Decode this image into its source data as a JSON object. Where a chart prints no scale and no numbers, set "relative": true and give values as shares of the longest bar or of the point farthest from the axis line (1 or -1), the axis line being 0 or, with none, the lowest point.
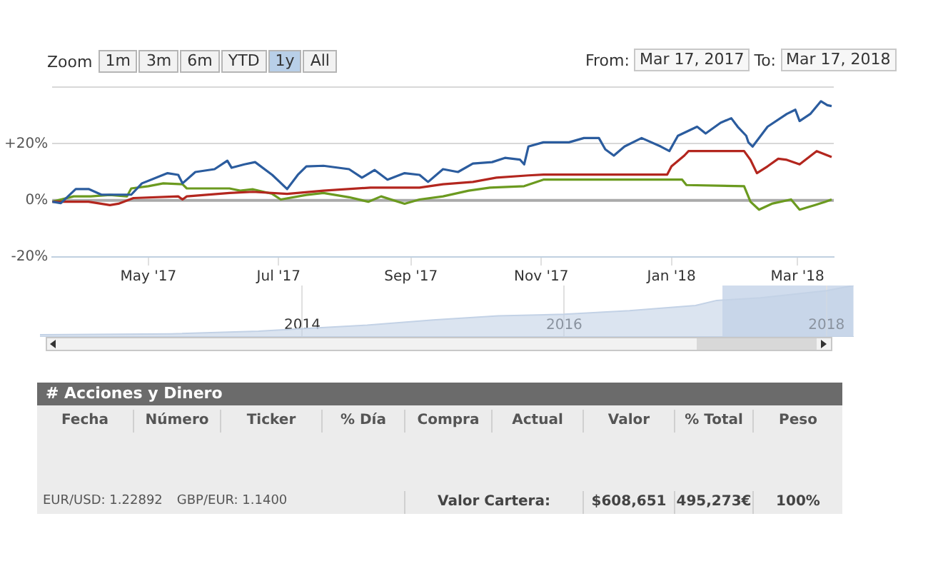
{
  "chart_data": [
    {
      "type": "line",
      "xlim": [
        "2017-03-17",
        "2018-03-18"
      ],
      "ylim": [
        -20,
        40
      ],
      "xticks": [
        {
          "value": "2017-05-01",
          "label": "May '17"
        },
        {
          "value": "2017-07-01",
          "label": "Jul '17"
        },
        {
          "value": "2017-09-01",
          "label": "Sep '17"
        },
        {
          "value": "2017-11-01",
          "label": "Nov '17"
        },
        {
          "value": "2018-01-01",
          "label": "Jan '18"
        },
        {
          "value": "2018-03-01",
          "label": "Mar '18"
        }
      ],
      "yticks": [
        {
          "value": -20,
          "label": "-20%"
        },
        {
          "value": 0,
          "label": "0%"
        },
        {
          "value": 20,
          "label": "+20%"
        },
        {
          "value": 40,
          "label": null
        }
      ],
      "grid": "y",
      "legend": false,
      "ref_lines": [
        {
          "axis": "y",
          "value": 0,
          "color": "#aaaaaa"
        }
      ],
      "annotations": [
        "Zoom",
        "1m",
        "3m",
        "6m",
        "YTD",
        "1y",
        "All",
        "From:",
        "Mar 17, 2017",
        "To:",
        "Mar 17, 2018"
      ],
      "series": [
        {
          "color": "#2b5c9e",
          "x": [
            "2017-03-17",
            "2017-03-21",
            "2017-03-28",
            "2017-04-03",
            "2017-04-09",
            "2017-04-23",
            "2017-04-28",
            "2017-05-10",
            "2017-05-15",
            "2017-05-17",
            "2017-05-23",
            "2017-06-01",
            "2017-06-07",
            "2017-06-09",
            "2017-06-15",
            "2017-06-20",
            "2017-06-28",
            "2017-07-05",
            "2017-07-10",
            "2017-07-14",
            "2017-07-22",
            "2017-08-03",
            "2017-08-09",
            "2017-08-15",
            "2017-08-21",
            "2017-08-29",
            "2017-09-05",
            "2017-09-09",
            "2017-09-16",
            "2017-09-23",
            "2017-09-30",
            "2017-10-09",
            "2017-10-15",
            "2017-10-22",
            "2017-10-24",
            "2017-10-26",
            "2017-11-02",
            "2017-11-14",
            "2017-11-21",
            "2017-11-28",
            "2017-12-01",
            "2017-12-05",
            "2017-12-10",
            "2017-12-18",
            "2017-12-27",
            "2017-12-31",
            "2018-01-04",
            "2018-01-13",
            "2018-01-17",
            "2018-01-24",
            "2018-01-29",
            "2018-02-01",
            "2018-02-05",
            "2018-02-06",
            "2018-02-08",
            "2018-02-15",
            "2018-02-24",
            "2018-02-28",
            "2018-03-02",
            "2018-03-07",
            "2018-03-12",
            "2018-03-15",
            "2018-03-17"
          ],
          "values": [
            -0.5,
            -1,
            4,
            4,
            2,
            2,
            6,
            9.6,
            9,
            6,
            10,
            11,
            14,
            11.5,
            12.7,
            13.5,
            9,
            4,
            9,
            12,
            12.2,
            11,
            8,
            10.7,
            7.3,
            9.6,
            9,
            6.5,
            11,
            10,
            13,
            13.5,
            15,
            14.4,
            12.7,
            19,
            20.5,
            20.5,
            22,
            22,
            18,
            15.8,
            19,
            22,
            19,
            17.4,
            22.8,
            26,
            23.6,
            27.4,
            29,
            26,
            22.8,
            20.5,
            19,
            26,
            30.5,
            32,
            28,
            30.5,
            35,
            33.6,
            33.3
          ]
        },
        {
          "color": "#b3261e",
          "x": [
            "2017-03-17",
            "2017-04-03",
            "2017-04-13",
            "2017-04-17",
            "2017-04-24",
            "2017-05-15",
            "2017-05-17",
            "2017-05-19",
            "2017-06-08",
            "2017-06-19",
            "2017-07-05",
            "2017-07-22",
            "2017-08-13",
            "2017-09-05",
            "2017-09-16",
            "2017-09-30",
            "2017-10-11",
            "2017-10-26",
            "2017-11-02",
            "2017-12-30",
            "2018-01-01",
            "2018-01-07",
            "2018-01-09",
            "2018-02-04",
            "2018-02-07",
            "2018-02-10",
            "2018-02-15",
            "2018-02-20",
            "2018-02-24",
            "2018-03-02",
            "2018-03-10",
            "2018-03-17"
          ],
          "values": [
            -0.5,
            -0.5,
            -1.7,
            -1.2,
            0.8,
            1.4,
            0.3,
            1.4,
            2.6,
            3,
            2.3,
            3.4,
            4.5,
            4.5,
            5.7,
            6.5,
            8,
            8.8,
            9.1,
            9.1,
            12,
            15.8,
            17.4,
            17.4,
            14.3,
            9.6,
            12,
            14.7,
            14.3,
            12.7,
            17.4,
            15.3
          ]
        },
        {
          "color": "#6b9a1f",
          "x": [
            "2017-03-17",
            "2017-03-27",
            "2017-04-04",
            "2017-04-13",
            "2017-04-21",
            "2017-04-23",
            "2017-05-01",
            "2017-05-08",
            "2017-05-17",
            "2017-05-19",
            "2017-06-08",
            "2017-06-13",
            "2017-06-19",
            "2017-06-28",
            "2017-07-02",
            "2017-07-14",
            "2017-07-22",
            "2017-08-03",
            "2017-08-12",
            "2017-08-18",
            "2017-08-29",
            "2017-09-05",
            "2017-09-16",
            "2017-09-28",
            "2017-10-08",
            "2017-10-24",
            "2017-11-02",
            "2018-01-06",
            "2018-01-08",
            "2018-02-04",
            "2018-02-07",
            "2018-02-11",
            "2018-02-17",
            "2018-02-26",
            "2018-03-02",
            "2018-03-09",
            "2018-03-14",
            "2018-03-17"
          ],
          "values": [
            -0.5,
            1.4,
            1.4,
            1.9,
            1.4,
            4.2,
            5,
            6,
            5.7,
            4.2,
            4.2,
            3.4,
            3.9,
            2.3,
            0.3,
            1.9,
            2.6,
            1.1,
            -0.5,
            1.4,
            -1.2,
            0.3,
            1.4,
            3.4,
            4.5,
            5,
            7.3,
            7.3,
            5.4,
            5,
            -0.5,
            -3.3,
            -1.2,
            0.3,
            -3.3,
            -1.7,
            -0.5,
            0.3
          ]
        }
      ]
    },
    {
      "type": "area",
      "relative": true,
      "xlim": [
        "2012-01-01",
        "2018-03-18"
      ],
      "xticks": [
        {
          "value": "2014",
          "label": "2014"
        },
        {
          "value": "2016",
          "label": "2016"
        },
        {
          "value": "2018",
          "label": "2018"
        }
      ],
      "grid": "x",
      "legend": false,
      "bands": [
        {
          "axis": "x",
          "from": "2017-03-17",
          "to": "2018-03-17",
          "color": "#c4d3e8"
        }
      ],
      "series": [
        {
          "color": "#c3d2e6",
          "x": [
            "2012-01-01",
            "2013-01-01",
            "2013-09-01",
            "2014-01-01",
            "2014-07-01",
            "2015-01-01",
            "2015-07-01",
            "2016-01-01",
            "2016-07-01",
            "2017-01-01",
            "2017-03-01",
            "2017-07-01",
            "2018-01-01",
            "2018-03-17"
          ],
          "values": [
            0.04,
            0.06,
            0.11,
            0.16,
            0.23,
            0.33,
            0.41,
            0.44,
            0.51,
            0.61,
            0.71,
            0.76,
            0.9,
            1
          ]
        }
      ]
    },
    {
      "type": "other",
      "title": "# Acciones y Dinero",
      "annotations": [
        "Fecha",
        "Número",
        "Ticker",
        "% Día",
        "Compra",
        "Actual",
        "Valor",
        "% Total",
        "Peso",
        "EUR/USD: 1.22892",
        "GBP/EUR: 1.1400",
        "Valor Cartera:",
        "$608,651",
        "495,273€",
        "100%"
      ]
    }
  ]
}
